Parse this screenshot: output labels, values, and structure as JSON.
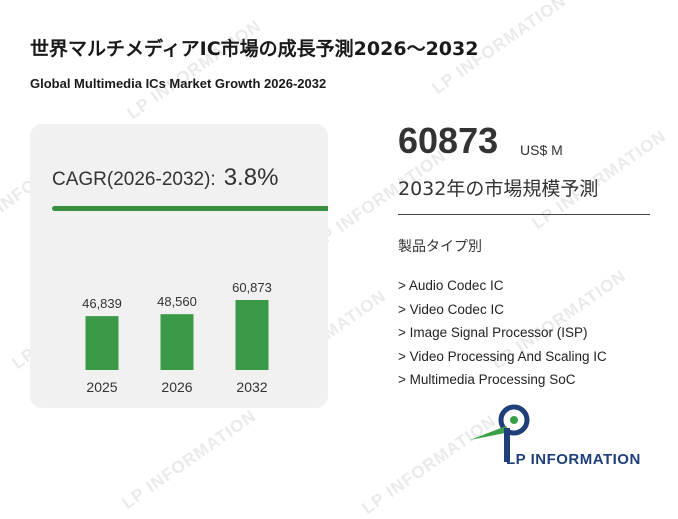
{
  "title_jp": "世界マルチメディアIC市場の成長予測2026～2032",
  "title_en": "Global Multimedia ICs Market Growth 2026-2032",
  "cagr": {
    "label": "CAGR(2026-2032):",
    "value": "3.8%"
  },
  "highlight": {
    "value": "60873",
    "unit": "US$ M",
    "label": "2032年の市場規模予測"
  },
  "segments": {
    "title": "製品タイプ別",
    "items": [
      "> Audio Codec IC",
      "> Video Codec IC",
      "> Image Signal Processor (ISP)",
      "> Video Processing And Scaling IC",
      "> Multimedia Processing SoC"
    ]
  },
  "logo": {
    "text": "LP INFORMATION"
  },
  "watermark_text": "LP INFORMATION",
  "colors": {
    "bar": "#3a9a47",
    "accent_line": "#3a8f3f",
    "logo_blue": "#1f3f7a",
    "logo_green": "#3aa046"
  },
  "chart_data": {
    "type": "bar",
    "categories": [
      "2025",
      "2026",
      "2032"
    ],
    "values": [
      46839,
      48560,
      60873
    ],
    "data_labels": [
      "46,839",
      "48,560",
      "60,873"
    ],
    "title": "",
    "xlabel": "",
    "ylabel": "",
    "grid": false,
    "legend": "none"
  }
}
